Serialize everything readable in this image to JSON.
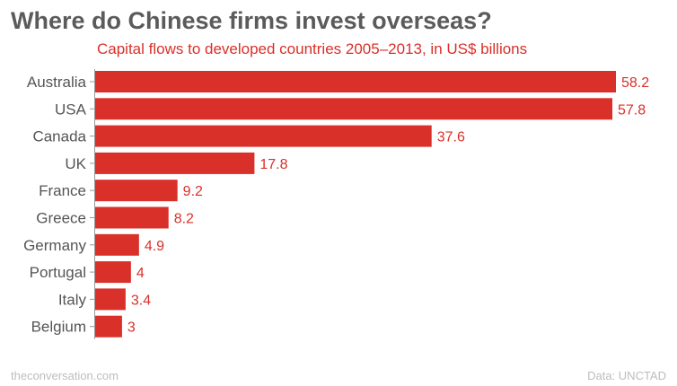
{
  "colors": {
    "bar": "#d9302a",
    "title": "#5b5b5b",
    "label": "#555555",
    "footer": "#bdbdbd"
  },
  "chart_data": {
    "type": "bar",
    "orientation": "horizontal",
    "title": "Where do Chinese firms invest overseas?",
    "subtitle": "Capital flows to developed countries 2005–2013, in US$ billions",
    "categories": [
      "Australia",
      "USA",
      "Canada",
      "UK",
      "France",
      "Greece",
      "Germany",
      "Portugal",
      "Italy",
      "Belgium"
    ],
    "values": [
      58.2,
      57.8,
      37.6,
      17.8,
      9.2,
      8.2,
      4.9,
      4,
      3.4,
      3
    ],
    "value_labels": [
      "58.2",
      "57.8",
      "37.6",
      "17.8",
      "9.2",
      "8.2",
      "4.9",
      "4",
      "3.4",
      "3"
    ],
    "xlim": [
      0,
      58.2
    ],
    "grid": false,
    "legend": "none"
  },
  "footer": {
    "source_site": "theconversation.com",
    "data_source": "Data: UNCTAD"
  }
}
